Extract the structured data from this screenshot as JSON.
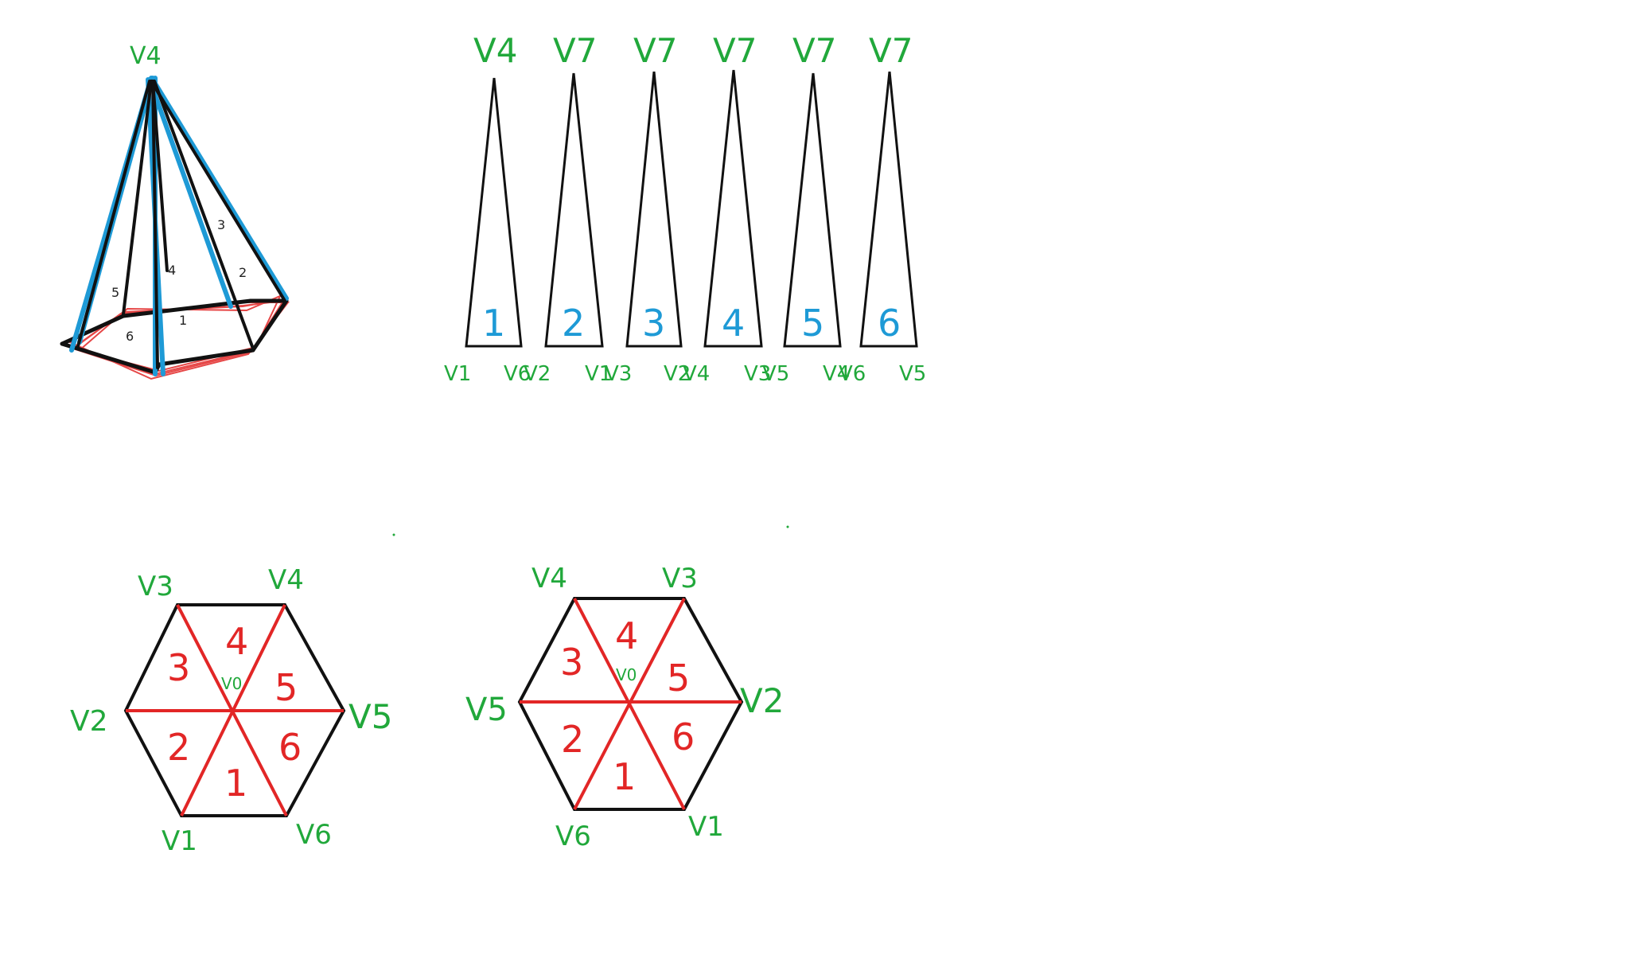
{
  "colors": {
    "vertex_label": "#21a83b",
    "strip_number": "#1e9ad6",
    "triangle_number": "#e22626",
    "edge": "#111111",
    "pyramid_edge": "#1e9ad6",
    "base_outline": "#e22626"
  },
  "pyramid": {
    "apex_label": "V4",
    "face_numbers": [
      "1",
      "2",
      "3",
      "4",
      "5",
      "6"
    ]
  },
  "strip": {
    "triangles": [
      {
        "number": "1",
        "apex_label": "V4",
        "left_label": "V1",
        "right_label": "V6"
      },
      {
        "number": "2",
        "apex_label": "V7",
        "left_label": "V2",
        "right_label": "V1"
      },
      {
        "number": "3",
        "apex_label": "V7",
        "left_label": "V3",
        "right_label": "V2"
      },
      {
        "number": "4",
        "apex_label": "V7",
        "left_label": "V4",
        "right_label": "V3"
      },
      {
        "number": "5",
        "apex_label": "V7",
        "left_label": "V5",
        "right_label": "V4"
      },
      {
        "number": "6",
        "apex_label": "V7",
        "left_label": "V6",
        "right_label": "V5"
      }
    ]
  },
  "hexagon_left": {
    "center_label": "V0",
    "vertex_labels": {
      "top_left": "V3",
      "top_right": "V4",
      "right": "V5",
      "bottom_right": "V6",
      "bottom_left": "V1",
      "left": "V2"
    },
    "section_numbers": [
      "3",
      "4",
      "5",
      "6",
      "1",
      "2"
    ]
  },
  "hexagon_right": {
    "center_label": "V0",
    "vertex_labels": {
      "top_left": "V4",
      "top_right": "V3",
      "right": "V2",
      "bottom_right": "V1",
      "bottom_left": "V6",
      "left": "V5"
    },
    "section_numbers": [
      "3",
      "4",
      "5",
      "6",
      "1",
      "2"
    ]
  }
}
